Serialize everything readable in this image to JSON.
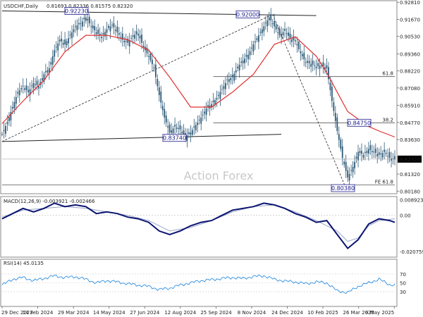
{
  "header": {
    "symbol_label": "USDCHF,Daily",
    "ohlc_label": "0.81693 0.82336 0.81575 0.82320"
  },
  "watermark": "Action Forex",
  "colors": {
    "candles": "#2e5a78",
    "ma": "#e03030",
    "macd_main": "#0a1470",
    "macd_signal": "#9aa3c8",
    "rsi": "#2e8fe0",
    "trend": "#000000",
    "price_box": "#1a1a8c"
  },
  "chart_data": [
    {
      "type": "line",
      "name": "price",
      "ylim": [
        0.801,
        0.9282
      ],
      "y_ticks": [
        "0.92810",
        "0.91670",
        "0.90530",
        "0.89360",
        "0.88220",
        "0.87080",
        "0.85910",
        "0.84770",
        "0.83630",
        "0.82320",
        "0.81320",
        "0.80180"
      ],
      "y_tick_values": [
        0.9281,
        0.9167,
        0.9053,
        0.8936,
        0.8822,
        0.8708,
        0.8591,
        0.8477,
        0.8363,
        0.8232,
        0.8132,
        0.8018
      ],
      "current_price": "0.82320",
      "current_value": 0.8232,
      "x_labels": [
        "29 Dec 2023",
        "14 Feb 2024",
        "29 Mar 2024",
        "14 May 2024",
        "27 Jun 2024",
        "12 Aug 2024",
        "25 Sep 2024",
        "8 Nov 2024",
        "24 Dec 2024",
        "10 Feb 2025",
        "26 Mar 2025",
        "9 May 2025"
      ],
      "close_path": [
        [
          0,
          0.84
        ],
        [
          3,
          0.848
        ],
        [
          6,
          0.858
        ],
        [
          9,
          0.868
        ],
        [
          12,
          0.872
        ],
        [
          15,
          0.868
        ],
        [
          18,
          0.874
        ],
        [
          21,
          0.872
        ],
        [
          24,
          0.88
        ],
        [
          27,
          0.884
        ],
        [
          30,
          0.896
        ],
        [
          33,
          0.903
        ],
        [
          36,
          0.9
        ],
        [
          39,
          0.906
        ],
        [
          42,
          0.912
        ],
        [
          45,
          0.914
        ],
        [
          48,
          0.918
        ],
        [
          51,
          0.912
        ],
        [
          54,
          0.908
        ],
        [
          57,
          0.905
        ],
        [
          60,
          0.91
        ],
        [
          63,
          0.913
        ],
        [
          66,
          0.908
        ],
        [
          69,
          0.903
        ],
        [
          72,
          0.901
        ],
        [
          75,
          0.906
        ],
        [
          78,
          0.907
        ],
        [
          81,
          0.898
        ],
        [
          84,
          0.892
        ],
        [
          87,
          0.884
        ],
        [
          90,
          0.866
        ],
        [
          93,
          0.851
        ],
        [
          96,
          0.841
        ],
        [
          99,
          0.845
        ],
        [
          102,
          0.843
        ],
        [
          105,
          0.838
        ],
        [
          108,
          0.841
        ],
        [
          111,
          0.846
        ],
        [
          114,
          0.851
        ],
        [
          117,
          0.857
        ],
        [
          120,
          0.86
        ],
        [
          123,
          0.864
        ],
        [
          126,
          0.87
        ],
        [
          129,
          0.876
        ],
        [
          132,
          0.878
        ],
        [
          135,
          0.885
        ],
        [
          138,
          0.889
        ],
        [
          141,
          0.893
        ],
        [
          144,
          0.9
        ],
        [
          147,
          0.906
        ],
        [
          150,
          0.912
        ],
        [
          153,
          0.918
        ],
        [
          156,
          0.912
        ],
        [
          159,
          0.906
        ],
        [
          162,
          0.909
        ],
        [
          165,
          0.904
        ],
        [
          168,
          0.902
        ],
        [
          171,
          0.894
        ],
        [
          174,
          0.888
        ],
        [
          177,
          0.887
        ],
        [
          180,
          0.885
        ],
        [
          183,
          0.886
        ],
        [
          186,
          0.884
        ],
        [
          189,
          0.862
        ],
        [
          192,
          0.842
        ],
        [
          195,
          0.824
        ],
        [
          198,
          0.811
        ],
        [
          201,
          0.818
        ],
        [
          204,
          0.828
        ],
        [
          207,
          0.826
        ],
        [
          210,
          0.83
        ],
        [
          213,
          0.828
        ],
        [
          216,
          0.826
        ],
        [
          219,
          0.828
        ],
        [
          222,
          0.824
        ],
        [
          225,
          0.823
        ]
      ],
      "ma_path": [
        [
          0,
          0.847
        ],
        [
          12,
          0.862
        ],
        [
          24,
          0.876
        ],
        [
          36,
          0.895
        ],
        [
          48,
          0.906
        ],
        [
          60,
          0.906
        ],
        [
          72,
          0.903
        ],
        [
          84,
          0.896
        ],
        [
          96,
          0.878
        ],
        [
          108,
          0.858
        ],
        [
          120,
          0.858
        ],
        [
          132,
          0.868
        ],
        [
          144,
          0.88
        ],
        [
          156,
          0.9
        ],
        [
          168,
          0.905
        ],
        [
          180,
          0.892
        ],
        [
          186,
          0.881
        ],
        [
          192,
          0.868
        ],
        [
          198,
          0.855
        ],
        [
          204,
          0.85
        ],
        [
          210,
          0.845
        ],
        [
          216,
          0.842
        ],
        [
          225,
          0.838
        ]
      ],
      "points": [
        {
          "label": "0.92230",
          "value": 0.9223
        },
        {
          "label": "0.92000",
          "value": 0.92
        },
        {
          "label": "0.83740",
          "value": 0.8374
        },
        {
          "label": "0.80380",
          "value": 0.8038
        },
        {
          "label": "0.84750",
          "value": 0.8475
        }
      ],
      "trendlines": [
        {
          "label": "upper-channel",
          "from": [
            0,
            0.9223
          ],
          "to": [
            180,
            0.9192
          ]
        },
        {
          "label": "lower-channel",
          "from": [
            0,
            0.835
          ],
          "to": [
            160,
            0.8398
          ]
        },
        {
          "label": "rising-support",
          "from": [
            0,
            0.835
          ],
          "to": [
            155,
            0.92
          ]
        },
        {
          "label": "falling-projection",
          "from": [
            155,
            0.92
          ],
          "to": [
            197,
            0.8038
          ]
        }
      ],
      "levels": [
        {
          "label": "61.8",
          "value": 0.8784
        },
        {
          "label": "38.2",
          "value": 0.8475
        },
        {
          "label": "FE 61.8",
          "value": 0.806
        }
      ]
    },
    {
      "type": "line",
      "name": "MACD(12,26,9) -0.003921 -0.002466",
      "header_label": "MACD(12,26,9) -0.003921 -0.002466",
      "ylim": [
        -0.0232,
        0.01
      ],
      "y_ticks": [
        "0.008923",
        "0.00",
        "-0.020759"
      ],
      "y_tick_values": [
        0.008923,
        0.0,
        -0.020759
      ],
      "main_path": [
        [
          0,
          -0.002
        ],
        [
          6,
          0.001
        ],
        [
          12,
          0.004
        ],
        [
          18,
          0.002
        ],
        [
          24,
          0.004
        ],
        [
          30,
          0.007
        ],
        [
          36,
          0.005
        ],
        [
          42,
          0.006
        ],
        [
          48,
          0.005
        ],
        [
          54,
          0.001
        ],
        [
          60,
          0.002
        ],
        [
          66,
          0.001
        ],
        [
          72,
          -0.001
        ],
        [
          78,
          -0.002
        ],
        [
          84,
          -0.004
        ],
        [
          90,
          -0.009
        ],
        [
          96,
          -0.011
        ],
        [
          102,
          -0.009
        ],
        [
          108,
          -0.006
        ],
        [
          114,
          -0.004
        ],
        [
          120,
          -0.003
        ],
        [
          126,
          0.0
        ],
        [
          132,
          0.003
        ],
        [
          138,
          0.004
        ],
        [
          144,
          0.005
        ],
        [
          150,
          0.007
        ],
        [
          156,
          0.006
        ],
        [
          162,
          0.004
        ],
        [
          168,
          0.001
        ],
        [
          174,
          -0.001
        ],
        [
          180,
          -0.004
        ],
        [
          186,
          -0.003
        ],
        [
          192,
          -0.011
        ],
        [
          198,
          -0.019
        ],
        [
          204,
          -0.014
        ],
        [
          210,
          -0.005
        ],
        [
          216,
          -0.002
        ],
        [
          222,
          -0.003
        ],
        [
          225,
          -0.004
        ]
      ],
      "signal_path": [
        [
          0,
          -0.001
        ],
        [
          12,
          0.003
        ],
        [
          24,
          0.004
        ],
        [
          36,
          0.005
        ],
        [
          48,
          0.004
        ],
        [
          60,
          0.002
        ],
        [
          72,
          0.0
        ],
        [
          84,
          -0.003
        ],
        [
          96,
          -0.009
        ],
        [
          108,
          -0.007
        ],
        [
          120,
          -0.003
        ],
        [
          132,
          0.002
        ],
        [
          144,
          0.005
        ],
        [
          156,
          0.006
        ],
        [
          168,
          0.002
        ],
        [
          180,
          -0.003
        ],
        [
          192,
          -0.009
        ],
        [
          198,
          -0.015
        ],
        [
          204,
          -0.013
        ],
        [
          210,
          -0.006
        ],
        [
          216,
          -0.003
        ],
        [
          225,
          -0.002
        ]
      ]
    },
    {
      "type": "line",
      "name": "RSI(14) 45.0135",
      "header_label": "RSI(14) 45.0135",
      "ylim": [
        0,
        100
      ],
      "y_ticks": [
        "70",
        "50",
        "30"
      ],
      "y_tick_values": [
        70,
        50,
        30
      ],
      "path": [
        [
          0,
          45
        ],
        [
          6,
          58
        ],
        [
          12,
          62
        ],
        [
          18,
          55
        ],
        [
          24,
          60
        ],
        [
          30,
          66
        ],
        [
          36,
          62
        ],
        [
          42,
          64
        ],
        [
          48,
          58
        ],
        [
          54,
          50
        ],
        [
          60,
          55
        ],
        [
          66,
          52
        ],
        [
          72,
          48
        ],
        [
          78,
          45
        ],
        [
          84,
          42
        ],
        [
          90,
          35
        ],
        [
          96,
          38
        ],
        [
          102,
          45
        ],
        [
          108,
          50
        ],
        [
          114,
          55
        ],
        [
          120,
          57
        ],
        [
          126,
          60
        ],
        [
          132,
          62
        ],
        [
          138,
          60
        ],
        [
          144,
          64
        ],
        [
          150,
          66
        ],
        [
          156,
          58
        ],
        [
          162,
          54
        ],
        [
          168,
          52
        ],
        [
          174,
          48
        ],
        [
          180,
          52
        ],
        [
          186,
          50
        ],
        [
          192,
          32
        ],
        [
          198,
          28
        ],
        [
          204,
          42
        ],
        [
          210,
          50
        ],
        [
          216,
          58
        ],
        [
          222,
          46
        ],
        [
          225,
          45
        ]
      ]
    }
  ]
}
